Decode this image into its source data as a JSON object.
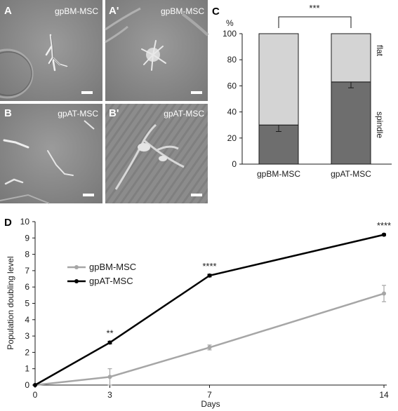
{
  "figure": {
    "panels": {
      "A": {
        "letter": "A",
        "label": "gpBM-MSC"
      },
      "A_prime": {
        "letter": "A'",
        "label": "gpBM-MSC"
      },
      "B": {
        "letter": "B",
        "label": "gpAT-MSC"
      },
      "B_prime": {
        "letter": "B'",
        "label": "gpAT-MSC"
      }
    },
    "panel_c_letter": "C",
    "panel_d_letter": "D",
    "colors": {
      "spindle": "#6e6e6e",
      "flat": "#d4d4d4",
      "gpBM": "#a6a6a6",
      "gpAT": "#000000",
      "micrograph_bg": "#8a8a8a"
    }
  },
  "chart_data": [
    {
      "type": "bar",
      "stacked": true,
      "ylabel": "%",
      "ylim": [
        0,
        100
      ],
      "yticks": [
        0,
        20,
        40,
        60,
        80,
        100
      ],
      "categories": [
        "gpBM-MSC",
        "gpAT-MSC"
      ],
      "series": [
        {
          "name": "spindle",
          "values": [
            30,
            63
          ],
          "error": [
            5,
            4.5
          ],
          "color": "#6e6e6e"
        },
        {
          "name": "flat",
          "values": [
            70,
            37
          ],
          "color": "#d4d4d4"
        }
      ],
      "significance": "***",
      "grid": false
    },
    {
      "type": "line",
      "xlabel": "Days",
      "ylabel": "Population doubling level",
      "x": [
        0,
        3,
        7,
        14
      ],
      "xticks": [
        0,
        3,
        7,
        14
      ],
      "xlim": [
        0,
        14
      ],
      "ylim": [
        0,
        10
      ],
      "yticks": [
        0,
        1,
        2,
        3,
        4,
        5,
        6,
        7,
        8,
        9,
        10
      ],
      "series": [
        {
          "name": "gpBM-MSC",
          "values": [
            0,
            0.5,
            2.3,
            5.6
          ],
          "error": [
            0,
            0.5,
            0.15,
            0.5
          ],
          "color": "#a6a6a6"
        },
        {
          "name": "gpAT-MSC",
          "values": [
            0,
            2.6,
            6.7,
            9.2
          ],
          "error": [
            0,
            0.08,
            0.08,
            0.06
          ],
          "color": "#000000"
        }
      ],
      "annotations": [
        {
          "x": 3,
          "text": "**"
        },
        {
          "x": 7,
          "text": "****"
        },
        {
          "x": 14,
          "text": "****"
        }
      ],
      "legend": "upper-left",
      "grid": false
    }
  ]
}
